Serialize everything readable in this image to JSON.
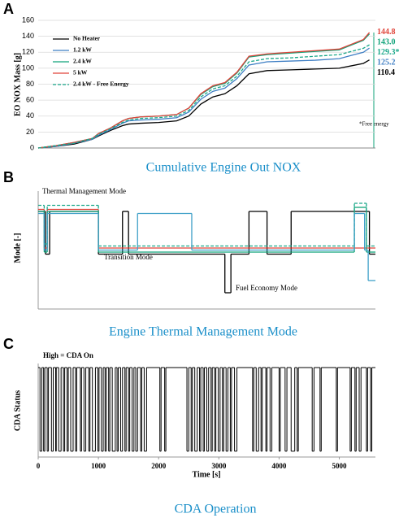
{
  "chart_data": [
    {
      "type": "line",
      "panel": "A",
      "caption": "Cumulative Engine Out NOX",
      "y_label": "EO NOX Mass [g]",
      "annotation": "*Free energy",
      "xlim": [
        0,
        5600
      ],
      "ylim": [
        0,
        160
      ],
      "yticks": [
        0,
        20,
        40,
        60,
        80,
        100,
        120,
        140,
        160
      ],
      "grid": true,
      "x": [
        0,
        300,
        600,
        900,
        1000,
        1200,
        1400,
        1500,
        1700,
        2000,
        2300,
        2500,
        2700,
        2900,
        3100,
        3300,
        3500,
        3800,
        4200,
        4600,
        5000,
        5200,
        5400,
        5500
      ],
      "series": [
        {
          "name": "No Heater",
          "color": "#000000",
          "dashed": false,
          "values": [
            0,
            2,
            5,
            11,
            15,
            22,
            28,
            30,
            31,
            32,
            34,
            40,
            55,
            64,
            68,
            78,
            93,
            97,
            98,
            99,
            100,
            103,
            106,
            110.4
          ],
          "value_labels": [
            null,
            null,
            null,
            null,
            null,
            null,
            null,
            null,
            null,
            null,
            null,
            null,
            null,
            null,
            null,
            null,
            null,
            null,
            null,
            null,
            null,
            null,
            null,
            "110.4"
          ]
        },
        {
          "name": "1.2 kW",
          "color": "#3f7fc4",
          "dashed": false,
          "values": [
            0,
            2,
            6,
            11,
            16,
            23,
            31,
            34,
            35,
            36,
            38,
            45,
            61,
            71,
            75,
            87,
            104,
            108,
            109,
            110,
            112,
            116,
            120,
            125.2
          ],
          "value_labels": [
            null,
            null,
            null,
            null,
            null,
            null,
            null,
            null,
            null,
            null,
            null,
            null,
            null,
            null,
            null,
            null,
            null,
            null,
            null,
            null,
            null,
            null,
            null,
            "125.2"
          ]
        },
        {
          "name": "2.4 kW",
          "color": "#11a37a",
          "dashed": false,
          "values": [
            0,
            3,
            7,
            12,
            18,
            25,
            34,
            37,
            39,
            40,
            42,
            50,
            67,
            77,
            81,
            94,
            114,
            117,
            119,
            121,
            123,
            129,
            135,
            143.0
          ],
          "value_labels": [
            null,
            null,
            null,
            null,
            null,
            null,
            null,
            null,
            null,
            null,
            null,
            null,
            null,
            null,
            null,
            null,
            null,
            null,
            null,
            null,
            null,
            null,
            null,
            "143.0"
          ]
        },
        {
          "name": "5 kW",
          "color": "#e0443a",
          "dashed": false,
          "values": [
            0,
            3,
            7,
            12,
            18,
            25,
            34,
            37,
            39,
            40,
            42,
            50,
            68,
            78,
            82,
            95,
            115,
            118,
            120,
            122,
            124,
            130,
            136,
            144.8
          ],
          "value_labels": [
            null,
            null,
            null,
            null,
            null,
            null,
            null,
            null,
            null,
            null,
            null,
            null,
            null,
            null,
            null,
            null,
            null,
            null,
            null,
            null,
            null,
            null,
            null,
            "144.8"
          ]
        },
        {
          "name": "2.4 kW - Free Energy",
          "color": "#1aa88a",
          "dashed": true,
          "values": [
            0,
            3,
            6,
            12,
            17,
            24,
            32,
            35,
            37,
            38,
            40,
            47,
            64,
            74,
            78,
            90,
            108,
            112,
            113,
            115,
            117,
            121,
            125,
            129.3
          ],
          "value_labels": [
            null,
            null,
            null,
            null,
            null,
            null,
            null,
            null,
            null,
            null,
            null,
            null,
            null,
            null,
            null,
            null,
            null,
            null,
            null,
            null,
            null,
            null,
            null,
            "129.3*"
          ]
        }
      ]
    },
    {
      "type": "step",
      "panel": "B",
      "caption": "Engine Thermal Management Mode",
      "y_label": "Mode [-]",
      "annotations": [
        "Thermal Management Mode",
        "Transition Mode",
        "Fuel Economy Mode"
      ],
      "xlim": [
        0,
        5600
      ],
      "ylim": [
        -0.4,
        2.4
      ],
      "series": [
        {
          "color": "#000000",
          "dashed": false,
          "x": [
            0,
            120,
            190,
            1000,
            1400,
            1500,
            3100,
            3200,
            3500,
            3800,
            4200,
            5500
          ],
          "values": [
            2,
            0.95,
            2,
            0.95,
            2,
            0.95,
            0,
            0.95,
            2,
            0.95,
            2,
            0.95
          ]
        },
        {
          "color": "#e0443a",
          "dashed": false,
          "x": [
            0,
            100,
            150,
            1000
          ],
          "values": [
            2.05,
            1.1,
            2.05,
            1.1
          ]
        },
        {
          "color": "#11a37a",
          "dashed": false,
          "x": [
            0,
            100,
            150,
            1000,
            5250,
            5450
          ],
          "values": [
            2,
            1,
            2,
            1,
            2.1,
            1
          ]
        },
        {
          "color": "#1aa88a",
          "dashed": true,
          "x": [
            0,
            100,
            150,
            1000,
            5250,
            5450
          ],
          "values": [
            2.15,
            1.2,
            2.15,
            1.15,
            2.2,
            1.15
          ]
        },
        {
          "color": "#3fa0c8",
          "dashed": false,
          "x": [
            0,
            100,
            150,
            1000,
            1650,
            2550,
            5250,
            5420,
            5480
          ],
          "values": [
            1.95,
            1.05,
            1.95,
            1.05,
            1.95,
            1.05,
            1.95,
            1.05,
            0.3
          ]
        }
      ]
    },
    {
      "type": "step",
      "panel": "C",
      "caption": "CDA Operation",
      "y_label": "CDA Status",
      "x_label": "Time [s]",
      "annotation": "High = CDA On",
      "xlim": [
        0,
        5600
      ],
      "ylim": [
        -0.05,
        1
      ],
      "xticks": [
        0,
        1000,
        2000,
        3000,
        4000,
        5000
      ],
      "series": [
        {
          "color": "#000000",
          "dashed": false,
          "x": [
            0,
            30,
            60,
            90,
            110,
            150,
            170,
            220,
            250,
            290,
            300,
            340,
            380,
            420,
            440,
            480,
            500,
            540,
            580,
            620,
            640,
            700,
            720,
            760,
            790,
            840,
            860,
            900,
            950,
            990,
            1010,
            1050,
            1080,
            1110,
            1130,
            1170,
            1190,
            1230,
            1280,
            1310,
            1330,
            1370,
            1400,
            1440,
            1460,
            1500,
            1520,
            1560,
            1590,
            1620,
            1650,
            1700,
            1720,
            1760,
            1800,
            2020,
            2040,
            2100,
            2120,
            2470,
            2500,
            2540,
            2560,
            2600,
            2640,
            2680,
            2700,
            2740,
            2760,
            2800,
            2830,
            2870,
            2890,
            2930,
            2950,
            2990,
            3020,
            3060,
            3080,
            3120,
            3150,
            3190,
            3210,
            3260,
            3300,
            3560,
            3580,
            3620,
            3660,
            3700,
            3720,
            3780,
            3800,
            3850,
            3880,
            4000,
            4020,
            4100,
            4130,
            4200,
            4260,
            4300,
            4320,
            4550,
            4580,
            4680,
            4700,
            4950,
            4970,
            5180,
            5200,
            5260,
            5280,
            5330,
            5360,
            5450,
            5470,
            5520,
            5540
          ],
          "values": [
            1,
            0,
            1,
            0,
            1,
            0,
            1,
            0,
            1,
            0,
            1,
            0,
            1,
            0,
            1,
            0,
            1,
            0,
            1,
            0,
            1,
            0,
            1,
            0,
            1,
            0,
            1,
            0,
            1,
            0,
            1,
            0,
            1,
            0,
            1,
            0,
            1,
            0,
            1,
            0,
            1,
            0,
            1,
            0,
            1,
            0,
            1,
            0,
            1,
            0,
            1,
            0,
            1,
            0,
            1,
            0,
            1,
            0,
            1,
            0,
            1,
            0,
            1,
            0,
            1,
            0,
            1,
            0,
            1,
            0,
            1,
            0,
            1,
            0,
            1,
            0,
            1,
            0,
            1,
            0,
            1,
            0,
            1,
            0,
            1,
            0,
            1,
            0,
            1,
            0,
            1,
            0,
            1,
            0,
            1,
            0,
            1,
            0,
            1,
            0,
            1,
            0,
            1,
            0,
            1,
            0,
            1,
            0,
            1,
            0,
            1,
            0,
            1,
            0,
            1,
            0,
            1,
            0,
            1
          ]
        }
      ]
    }
  ]
}
